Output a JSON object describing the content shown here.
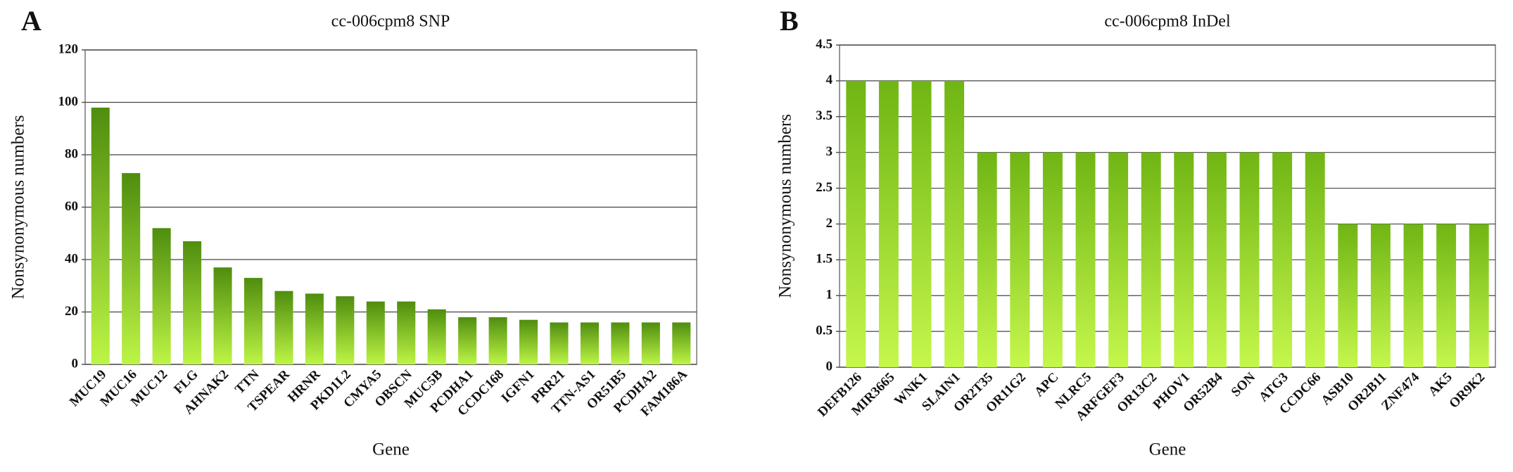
{
  "chart_data": [
    {
      "type": "bar",
      "panel": "A",
      "title": "cc-006cpm8 SNP",
      "y_label": "Nonsynonymous numbers",
      "x_label": "Gene",
      "categories": [
        "MUC19",
        "MUC16",
        "MUC12",
        "FLG",
        "AHNAK2",
        "TTN",
        "TSPEAR",
        "HRNR",
        "PKD1L2",
        "CMYA5",
        "OBSCN",
        "MUC5B",
        "PCDHA1",
        "CCDC168",
        "IGFN1",
        "PRR21",
        "TTN-AS1",
        "OR51B5",
        "PCDHA2",
        "FAM186A"
      ],
      "values": [
        98,
        73,
        52,
        47,
        37,
        33,
        28,
        27,
        26,
        24,
        24,
        21,
        18,
        18,
        17,
        16,
        16,
        16,
        16,
        16
      ],
      "gradient": [
        "#4f8d0e",
        "#bdf545"
      ],
      "ylim": [
        0,
        120
      ],
      "yticks": [
        0,
        20,
        40,
        60,
        80,
        100,
        120
      ],
      "grid": true
    },
    {
      "type": "bar",
      "panel": "B",
      "title": "cc-006cpm8 InDel",
      "y_label": "Nonsynonymous numbers",
      "x_label": "Gene",
      "categories": [
        "DEFB126",
        "MIR3665",
        "WNK1",
        "SLAIN1",
        "OR2T35",
        "OR11G2",
        "APC",
        "NLRC5",
        "ARFGEF3",
        "OR13C2",
        "PHOV1",
        "OR52B4",
        "SON",
        "ATG3",
        "CCDC66",
        "ASB10",
        "OR2B11",
        "ZNF474",
        "AK5",
        "OR9K2"
      ],
      "values": [
        4,
        4,
        4,
        4,
        3,
        3,
        3,
        3,
        3,
        3,
        3,
        3,
        3,
        3,
        3,
        2,
        2,
        2,
        2,
        2
      ],
      "gradient": [
        "#6fb514",
        "#c5f74c"
      ],
      "ylim": [
        0,
        4.5
      ],
      "yticks": [
        0,
        0.5,
        1,
        1.5,
        2,
        2.5,
        3,
        3.5,
        4,
        4.5
      ],
      "grid": true
    }
  ]
}
